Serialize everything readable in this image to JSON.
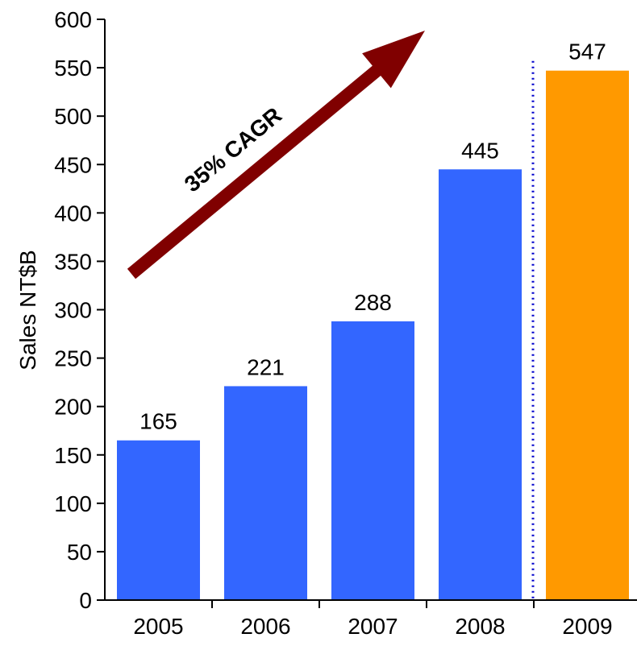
{
  "chart_data": {
    "type": "bar",
    "categories": [
      "2005",
      "2006",
      "2007",
      "2008",
      "2009"
    ],
    "values": [
      165,
      221,
      288,
      445,
      547
    ],
    "data_labels": [
      "165",
      "221",
      "288",
      "445",
      "547"
    ],
    "title": "",
    "xlabel": "",
    "ylabel": "Sales NT$B",
    "ylim": [
      0,
      600
    ],
    "yticks": [
      0,
      50,
      100,
      150,
      200,
      250,
      300,
      350,
      400,
      450,
      500,
      550,
      600
    ],
    "grid": false,
    "colors": {
      "bar": "#3366ff",
      "highlight_bar": "#ff9900",
      "arrow": "#800000",
      "divider": "#0000cc"
    },
    "highlight_index": 4,
    "divider_between": [
      3,
      4
    ],
    "annotation": {
      "text": "35% CAGR",
      "icon": "trend-arrow-icon"
    }
  }
}
